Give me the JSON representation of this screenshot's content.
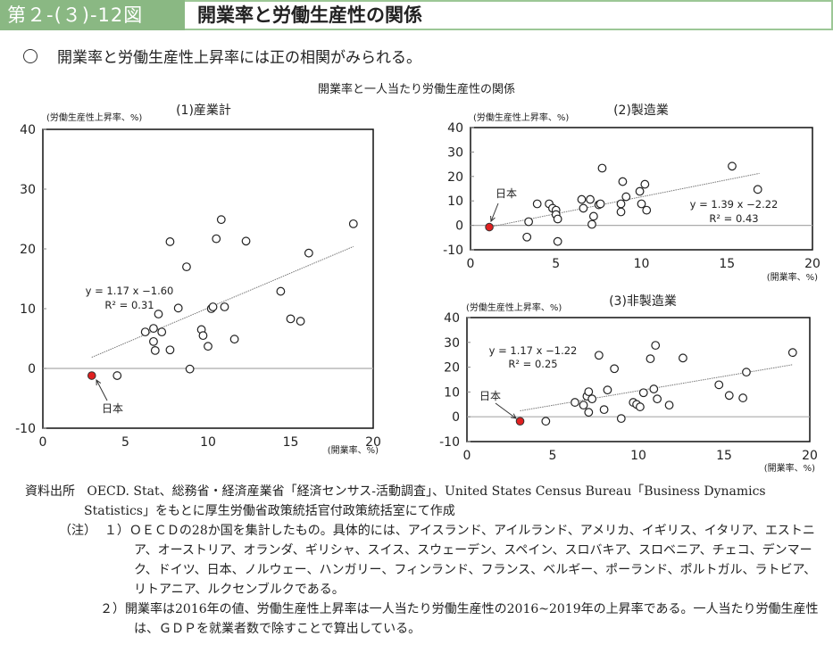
{
  "header": {
    "figure_number": "第２-(３)-12図",
    "title": "開業率と労働生産性の関係"
  },
  "summary": "開業率と労働生産性上昇率には正の相関がみられる。",
  "figure_subtitle": "開業率と一人当たり労働生産性の関係",
  "colors": {
    "header_green": "#8ab883",
    "japan_point": "#e02020",
    "point_stroke": "#222222",
    "trend_line": "#777777",
    "zero_line": "#aaaaaa"
  },
  "chart_data": [
    {
      "id": "all",
      "type": "scatter",
      "title": "(1)産業計",
      "ylabel": "(労働生産性上昇率、%)",
      "xlabel": "(開業率、%)",
      "xlim": [
        0,
        20
      ],
      "ylim": [
        -10,
        40
      ],
      "xticks": [
        0,
        5,
        10,
        15,
        20
      ],
      "yticks": [
        -10,
        0,
        10,
        20,
        30,
        40
      ],
      "trend": {
        "slope": 1.17,
        "intercept": -1.6,
        "x_range": [
          2.96,
          18.8
        ],
        "equation": "y = 1.17 x −1.60",
        "r2": "R² = 0.31"
      },
      "japan": {
        "label": "日本",
        "x": 2.96,
        "y": -1.2
      },
      "points": [
        {
          "x": 4.5,
          "y": -1.2
        },
        {
          "x": 6.2,
          "y": 6.1
        },
        {
          "x": 6.7,
          "y": 6.7
        },
        {
          "x": 7.2,
          "y": 6.1
        },
        {
          "x": 7.0,
          "y": 9.1
        },
        {
          "x": 6.7,
          "y": 4.5
        },
        {
          "x": 6.8,
          "y": 3.0
        },
        {
          "x": 7.7,
          "y": 3.1
        },
        {
          "x": 8.2,
          "y": 10.1
        },
        {
          "x": 9.6,
          "y": 6.5
        },
        {
          "x": 9.7,
          "y": 5.5
        },
        {
          "x": 10.0,
          "y": 3.7
        },
        {
          "x": 8.9,
          "y": -0.1
        },
        {
          "x": 10.2,
          "y": 10.0
        },
        {
          "x": 10.3,
          "y": 10.3
        },
        {
          "x": 11.0,
          "y": 10.3
        },
        {
          "x": 11.6,
          "y": 4.9
        },
        {
          "x": 7.7,
          "y": 21.2
        },
        {
          "x": 8.7,
          "y": 17.0
        },
        {
          "x": 10.8,
          "y": 24.9
        },
        {
          "x": 10.5,
          "y": 21.7
        },
        {
          "x": 12.3,
          "y": 21.3
        },
        {
          "x": 16.1,
          "y": 19.3
        },
        {
          "x": 18.8,
          "y": 24.2
        },
        {
          "x": 14.4,
          "y": 12.9
        },
        {
          "x": 15.0,
          "y": 8.3
        },
        {
          "x": 15.6,
          "y": 7.9
        }
      ]
    },
    {
      "id": "mfg",
      "type": "scatter",
      "title": "(2)製造業",
      "ylabel": "(労働生産性上昇率、%)",
      "xlabel": "(開業率、%)",
      "xlim": [
        0,
        20
      ],
      "ylim": [
        -10,
        40
      ],
      "xticks": [
        0,
        5,
        10,
        15,
        20
      ],
      "yticks": [
        -10,
        0,
        10,
        20,
        30,
        40
      ],
      "trend": {
        "slope": 1.39,
        "intercept": -2.22,
        "x_range": [
          1.1,
          16.9
        ],
        "equation": "y = 1.39 x −2.22",
        "r2": "R² = 0.43"
      },
      "japan": {
        "label": "日本",
        "x": 1.1,
        "y": -0.7
      },
      "points": [
        {
          "x": 3.4,
          "y": 1.5
        },
        {
          "x": 3.3,
          "y": -4.8
        },
        {
          "x": 3.9,
          "y": 8.8
        },
        {
          "x": 4.6,
          "y": 8.8
        },
        {
          "x": 4.8,
          "y": 7.0
        },
        {
          "x": 5.0,
          "y": 6.2
        },
        {
          "x": 5.0,
          "y": 4.4
        },
        {
          "x": 5.1,
          "y": 2.6
        },
        {
          "x": 5.1,
          "y": -6.6
        },
        {
          "x": 6.5,
          "y": 10.6
        },
        {
          "x": 6.6,
          "y": 7.0
        },
        {
          "x": 7.0,
          "y": 10.6
        },
        {
          "x": 7.2,
          "y": 3.7
        },
        {
          "x": 7.1,
          "y": 0.4
        },
        {
          "x": 7.5,
          "y": 8.4
        },
        {
          "x": 7.6,
          "y": 8.8
        },
        {
          "x": 7.7,
          "y": 23.4
        },
        {
          "x": 8.9,
          "y": 17.9
        },
        {
          "x": 8.8,
          "y": 8.8
        },
        {
          "x": 8.8,
          "y": 5.5
        },
        {
          "x": 9.1,
          "y": 11.7
        },
        {
          "x": 9.9,
          "y": 13.9
        },
        {
          "x": 10.2,
          "y": 16.8
        },
        {
          "x": 10.0,
          "y": 8.8
        },
        {
          "x": 10.3,
          "y": 6.2
        },
        {
          "x": 15.3,
          "y": 24.2
        },
        {
          "x": 16.8,
          "y": 14.7
        }
      ]
    },
    {
      "id": "nonmfg",
      "type": "scatter",
      "title": "(3)非製造業",
      "ylabel": "(労働生産性上昇率、%)",
      "xlabel": "(開業率、%)",
      "xlim": [
        0,
        20
      ],
      "ylim": [
        -10,
        40
      ],
      "xticks": [
        0,
        5,
        10,
        15,
        20
      ],
      "yticks": [
        -10,
        0,
        10,
        20,
        30,
        40
      ],
      "trend": {
        "slope": 1.17,
        "intercept": -1.22,
        "x_range": [
          3.1,
          19.0
        ],
        "equation": "y = 1.17 x −1.22",
        "r2": "R² = 0.25"
      },
      "japan": {
        "label": "日本",
        "x": 3.1,
        "y": -1.8
      },
      "points": [
        {
          "x": 4.6,
          "y": -1.8
        },
        {
          "x": 6.3,
          "y": 5.8
        },
        {
          "x": 6.8,
          "y": 4.7
        },
        {
          "x": 7.1,
          "y": 1.8
        },
        {
          "x": 7.0,
          "y": 8.3
        },
        {
          "x": 7.1,
          "y": 10.1
        },
        {
          "x": 7.3,
          "y": 7.2
        },
        {
          "x": 7.7,
          "y": 24.8
        },
        {
          "x": 8.0,
          "y": 2.9
        },
        {
          "x": 8.2,
          "y": 10.8
        },
        {
          "x": 8.6,
          "y": 19.4
        },
        {
          "x": 9.0,
          "y": -0.7
        },
        {
          "x": 9.7,
          "y": 5.8
        },
        {
          "x": 9.9,
          "y": 5.0
        },
        {
          "x": 10.1,
          "y": 4.0
        },
        {
          "x": 10.3,
          "y": 9.7
        },
        {
          "x": 10.7,
          "y": 23.4
        },
        {
          "x": 10.9,
          "y": 11.2
        },
        {
          "x": 11.0,
          "y": 28.8
        },
        {
          "x": 11.1,
          "y": 7.2
        },
        {
          "x": 11.8,
          "y": 4.7
        },
        {
          "x": 12.6,
          "y": 23.7
        },
        {
          "x": 14.7,
          "y": 12.9
        },
        {
          "x": 15.3,
          "y": 8.6
        },
        {
          "x": 16.1,
          "y": 7.6
        },
        {
          "x": 16.3,
          "y": 18.0
        },
        {
          "x": 19.0,
          "y": 25.9
        }
      ]
    }
  ],
  "notes": {
    "source_label": "資料出所",
    "source_text": "OECD. Stat、総務省・経済産業省「経済センサス-活動調査」、United States Census Bureau「Business Dynamics Statistics」をもとに厚生労働省政策統括官付政策統括室にて作成",
    "note_label": "（注）",
    "note1": "１）ＯＥＣＤの28か国を集計したもの。具体的には、アイスランド、アイルランド、アメリカ、イギリス、イタリア、エストニア、オーストリア、オランダ、ギリシャ、スイス、スウェーデン、スペイン、スロバキア、スロベニア、チェコ、デンマーク、ドイツ、日本、ノルウェー、ハンガリー、フィンランド、フランス、ベルギー、ポーランド、ポルトガル、ラトビア、リトアニア、ルクセンブルクである。",
    "note2": "２）開業率は2016年の値、労働生産性上昇率は一人当たり労働生産性の2016~2019年の上昇率である。一人当たり労働生産性は、ＧＤＰを就業者数で除すことで算出している。"
  }
}
